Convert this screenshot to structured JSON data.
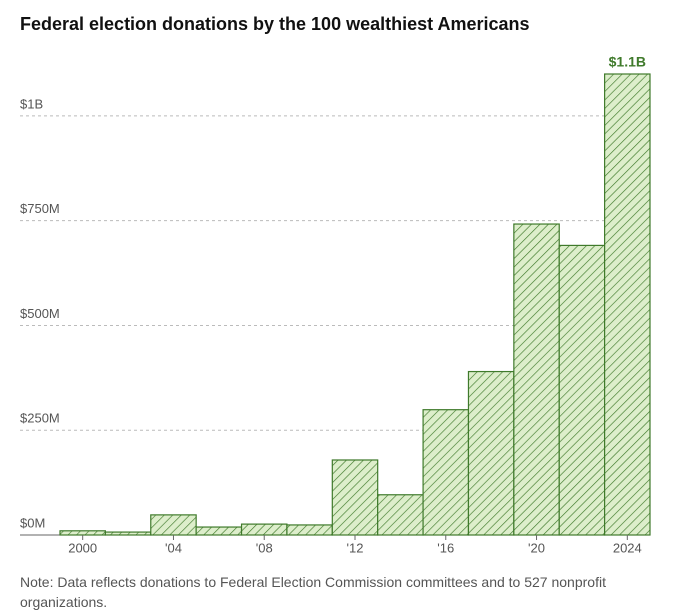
{
  "chart_data": {
    "type": "bar",
    "title": "Federal election donations by the 100 wealthiest Americans",
    "categories": [
      "2000",
      null,
      "'04",
      null,
      "'08",
      null,
      "'12",
      null,
      "'16",
      null,
      "'20",
      null,
      "2024"
    ],
    "values": [
      10,
      7,
      48,
      19,
      26,
      24,
      179,
      96,
      299,
      390,
      742,
      691,
      1100
    ],
    "value_labels": [
      null,
      null,
      null,
      null,
      null,
      null,
      null,
      null,
      null,
      null,
      null,
      null,
      "$1.1B"
    ],
    "color": "#3f7a2b",
    "ylim": [
      0,
      1100
    ],
    "yticks": [
      {
        "value": 0,
        "label": "$0M"
      },
      {
        "value": 250,
        "label": "$250M"
      },
      {
        "value": 500,
        "label": "$500M"
      },
      {
        "value": 750,
        "label": "$750M"
      },
      {
        "value": 1000,
        "label": "$1B"
      }
    ],
    "grid": true,
    "note": "Note: Data reflects donations to Federal Election Commission committees and to 527 nonprofit organizations."
  }
}
